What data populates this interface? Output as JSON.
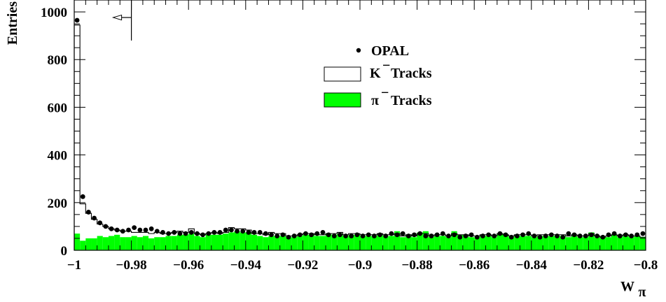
{
  "chart_data": {
    "type": "bar",
    "xlabel": "W",
    "xlabel_sub": "π",
    "ylabel": "Entries",
    "xlim": [
      -1.0,
      -0.8
    ],
    "ylim": [
      0,
      1050
    ],
    "x_ticks": [
      -1.0,
      -0.98,
      -0.96,
      -0.94,
      -0.92,
      -0.9,
      -0.88,
      -0.86,
      -0.84,
      -0.82,
      -0.8
    ],
    "x_tick_labels": [
      "−1",
      "−0.98",
      "−0.96",
      "−0.94",
      "−0.92",
      "−0.9",
      "−0.88",
      "−0.86",
      "−0.84",
      "−0.82",
      "−0.8"
    ],
    "y_ticks": [
      0,
      200,
      400,
      600,
      800,
      1000
    ],
    "y_tick_labels": [
      "0",
      "200",
      "400",
      "600",
      "800",
      "1000"
    ],
    "bin_edges_start": -1.0,
    "bin_width": 0.002,
    "legend": {
      "position": "top-center",
      "entries": [
        {
          "label": "OPAL",
          "style": "marker"
        },
        {
          "label_main": "K",
          "label_sup": "−",
          "label_rest": "Tracks",
          "style": "hollow"
        },
        {
          "label_main": "π",
          "label_sup": "−",
          "label_rest": "Tracks",
          "style": "filled"
        }
      ]
    },
    "colors": {
      "pion_fill": "#00ff00",
      "kaon_line": "#000000",
      "data_marker": "#000000"
    },
    "cut_marker": {
      "x": -0.98,
      "y_top": 1000,
      "y_bottom": 880,
      "direction": "left"
    },
    "series": [
      {
        "name": "K⁻ Tracks",
        "style": "hollow",
        "values": [
          945,
          195,
          155,
          130,
          110,
          100,
          90,
          85,
          80,
          80,
          75,
          75,
          75,
          70,
          75,
          70,
          70,
          75,
          80,
          75,
          90,
          70,
          65,
          70,
          75,
          70,
          75,
          95,
          90,
          90,
          85,
          70,
          70,
          65,
          75,
          70,
          70,
          60,
          60,
          65,
          70,
          70,
          65,
          65,
          70,
          70,
          75,
          65,
          70,
          70,
          65,
          65,
          65,
          70,
          65,
          65,
          70,
          60,
          65,
          60,
          70,
          70,
          60,
          65,
          65,
          60,
          70,
          65,
          65,
          60,
          60,
          65,
          65,
          60,
          70,
          65,
          60,
          65,
          65,
          65,
          60,
          65,
          65,
          65,
          65,
          65,
          60,
          65,
          60,
          60,
          70,
          60,
          55,
          60,
          65,
          60,
          65,
          60,
          60,
          55
        ]
      },
      {
        "name": "π⁻ Tracks",
        "style": "filled",
        "values": [
          70,
          40,
          50,
          50,
          60,
          55,
          60,
          65,
          55,
          55,
          60,
          55,
          60,
          50,
          55,
          55,
          60,
          60,
          65,
          65,
          70,
          60,
          55,
          65,
          65,
          65,
          70,
          75,
          80,
          75,
          75,
          65,
          60,
          55,
          60,
          60,
          60,
          55,
          55,
          60,
          65,
          65,
          60,
          60,
          70,
          65,
          70,
          60,
          65,
          65,
          60,
          60,
          60,
          65,
          60,
          60,
          80,
          55,
          60,
          55,
          75,
          80,
          55,
          60,
          60,
          55,
          80,
          65,
          65,
          55,
          55,
          60,
          60,
          55,
          70,
          65,
          55,
          60,
          60,
          60,
          55,
          60,
          60,
          60,
          60,
          60,
          55,
          60,
          55,
          55,
          75,
          55,
          55,
          55,
          65,
          55,
          60,
          55,
          60,
          55
        ]
      },
      {
        "name": "OPAL",
        "style": "marker",
        "values": [
          965,
          225,
          160,
          135,
          115,
          100,
          90,
          85,
          80,
          85,
          95,
          85,
          85,
          90,
          80,
          75,
          70,
          75,
          70,
          70,
          75,
          70,
          65,
          70,
          75,
          75,
          85,
          85,
          80,
          80,
          75,
          75,
          75,
          70,
          65,
          60,
          65,
          55,
          60,
          65,
          70,
          65,
          70,
          75,
          65,
          60,
          65,
          60,
          60,
          65,
          60,
          65,
          60,
          65,
          60,
          70,
          65,
          70,
          60,
          65,
          70,
          60,
          60,
          65,
          70,
          60,
          65,
          55,
          60,
          65,
          55,
          60,
          65,
          60,
          70,
          65,
          55,
          60,
          65,
          70,
          60,
          55,
          60,
          65,
          60,
          55,
          70,
          65,
          60,
          60,
          65,
          60,
          55,
          65,
          70,
          60,
          65,
          60,
          65,
          70
        ]
      }
    ]
  }
}
